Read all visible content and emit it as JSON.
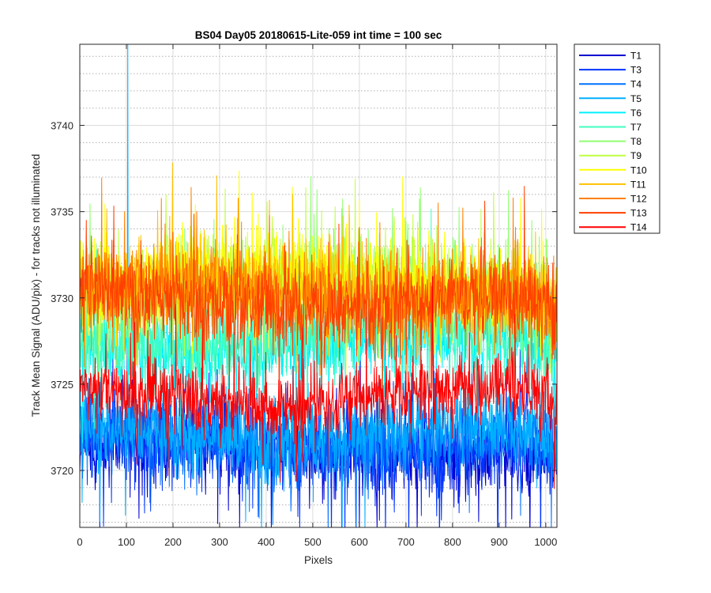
{
  "chart_data": {
    "type": "line",
    "title": "BS04 Day05 20180615-Lite-059 int time = 100 sec",
    "xlabel": "Pixels",
    "ylabel": "Track Mean Signal (ADU/pix) - for tracks not illuminated",
    "xlim": [
      0,
      1024
    ],
    "ylim": [
      3716.7,
      3744.7
    ],
    "xticks": [
      0,
      100,
      200,
      300,
      400,
      500,
      600,
      700,
      800,
      900,
      1000
    ],
    "yticks": [
      3720,
      3725,
      3730,
      3735,
      3740
    ],
    "grid": {
      "major": true,
      "minor_y_dotted": true
    },
    "legend_position": "outside-top-right",
    "series": [
      {
        "name": "T1",
        "color": "#0000d0",
        "mean": 3721.3,
        "amp": 1.5,
        "spike": 2.5
      },
      {
        "name": "T3",
        "color": "#0033ff",
        "mean": 3721.5,
        "amp": 1.5,
        "spike": 2.5
      },
      {
        "name": "T4",
        "color": "#0070ff",
        "mean": 3721.8,
        "amp": 1.5,
        "spike": 2.5
      },
      {
        "name": "T5",
        "color": "#00b0ff",
        "mean": 3722.2,
        "amp": 1.5,
        "spike": 2.5,
        "peak": {
          "x": 103,
          "y": 3744.7
        }
      },
      {
        "name": "T6",
        "color": "#00f0ff",
        "mean": 3727.3,
        "amp": 1.6,
        "spike": 2.5
      },
      {
        "name": "T7",
        "color": "#40ffc0",
        "mean": 3727.8,
        "amp": 1.6,
        "spike": 2.5
      },
      {
        "name": "T8",
        "color": "#90ff70",
        "mean": 3730.5,
        "amp": 1.6,
        "spike": 2.5
      },
      {
        "name": "T9",
        "color": "#c0ff40",
        "mean": 3730.8,
        "amp": 1.6,
        "spike": 2.5
      },
      {
        "name": "T10",
        "color": "#ffff00",
        "mean": 3731.0,
        "amp": 1.6,
        "spike": 2.5
      },
      {
        "name": "T11",
        "color": "#ffc000",
        "mean": 3730.6,
        "amp": 1.6,
        "spike": 2.5
      },
      {
        "name": "T12",
        "color": "#ff8000",
        "mean": 3730.2,
        "amp": 1.6,
        "spike": 2.5
      },
      {
        "name": "T13",
        "color": "#ff4000",
        "mean": 3729.8,
        "amp": 1.6,
        "spike": 2.5
      },
      {
        "name": "T14",
        "color": "#ff0000",
        "mean": 3724.3,
        "amp": 1.3,
        "spike": 2.3
      }
    ]
  }
}
